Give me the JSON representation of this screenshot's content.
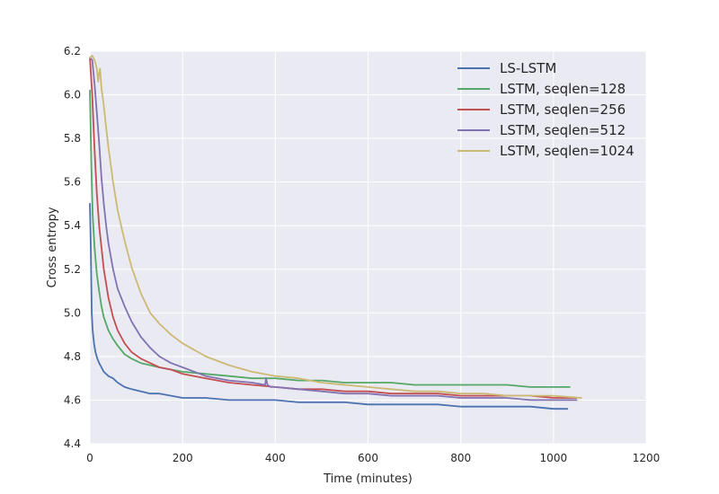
{
  "chart_data": {
    "type": "line",
    "title": "",
    "xlabel": "Time (minutes)",
    "ylabel": "Cross entropy",
    "xlim": [
      0,
      1200
    ],
    "ylim": [
      4.4,
      6.2
    ],
    "xticks": [
      0,
      200,
      400,
      600,
      800,
      1000,
      1200
    ],
    "yticks": [
      4.4,
      4.6,
      4.8,
      5.0,
      5.2,
      5.4,
      5.6,
      5.8,
      6.0,
      6.2
    ],
    "xtick_labels": [
      "0",
      "200",
      "400",
      "600",
      "800",
      "1000",
      "1200"
    ],
    "ytick_labels": [
      "4.4",
      "4.6",
      "4.8",
      "5.0",
      "5.2",
      "5.4",
      "5.6",
      "5.8",
      "6.0",
      "6.2"
    ],
    "grid": true,
    "legend_position": "top-right",
    "series": [
      {
        "name": "LS-LSTM",
        "color": "#4C72B0",
        "x": [
          0,
          2,
          4,
          6,
          9,
          12,
          16,
          20,
          25,
          30,
          40,
          50,
          60,
          75,
          90,
          110,
          130,
          150,
          175,
          200,
          250,
          300,
          350,
          400,
          450,
          500,
          550,
          600,
          650,
          700,
          750,
          800,
          850,
          900,
          950,
          1000,
          1030
        ],
        "y": [
          5.5,
          5.3,
          5.0,
          4.92,
          4.86,
          4.82,
          4.79,
          4.77,
          4.75,
          4.73,
          4.71,
          4.7,
          4.68,
          4.66,
          4.65,
          4.64,
          4.63,
          4.63,
          4.62,
          4.61,
          4.61,
          4.6,
          4.6,
          4.6,
          4.59,
          4.59,
          4.59,
          4.58,
          4.58,
          4.58,
          4.58,
          4.57,
          4.57,
          4.57,
          4.57,
          4.56,
          4.56
        ]
      },
      {
        "name": "LSTM, seqlen=128",
        "color": "#55A868",
        "x": [
          0,
          3,
          6,
          10,
          15,
          20,
          25,
          30,
          40,
          50,
          60,
          75,
          90,
          110,
          130,
          150,
          175,
          200,
          250,
          300,
          350,
          400,
          450,
          500,
          550,
          600,
          650,
          700,
          750,
          800,
          850,
          900,
          950,
          1000,
          1035
        ],
        "y": [
          6.02,
          5.7,
          5.45,
          5.3,
          5.18,
          5.1,
          5.03,
          4.98,
          4.92,
          4.88,
          4.85,
          4.81,
          4.79,
          4.77,
          4.76,
          4.75,
          4.74,
          4.73,
          4.72,
          4.71,
          4.7,
          4.7,
          4.69,
          4.69,
          4.68,
          4.68,
          4.68,
          4.67,
          4.67,
          4.67,
          4.67,
          4.67,
          4.66,
          4.66,
          4.66
        ]
      },
      {
        "name": "LSTM, seqlen=256",
        "color": "#C44E52",
        "x": [
          0,
          5,
          10,
          15,
          20,
          25,
          30,
          40,
          50,
          60,
          75,
          90,
          110,
          130,
          150,
          175,
          200,
          250,
          300,
          350,
          400,
          450,
          500,
          550,
          600,
          650,
          700,
          750,
          800,
          850,
          900,
          950,
          1000,
          1050
        ],
        "y": [
          6.17,
          6.0,
          5.75,
          5.55,
          5.4,
          5.3,
          5.2,
          5.07,
          4.98,
          4.92,
          4.86,
          4.82,
          4.79,
          4.77,
          4.75,
          4.74,
          4.72,
          4.7,
          4.68,
          4.67,
          4.66,
          4.65,
          4.65,
          4.64,
          4.64,
          4.63,
          4.63,
          4.63,
          4.62,
          4.62,
          4.62,
          4.62,
          4.61,
          4.61
        ]
      },
      {
        "name": "LSTM, seqlen=512",
        "color": "#8172B2",
        "x": [
          0,
          5,
          10,
          15,
          20,
          25,
          30,
          35,
          40,
          50,
          60,
          75,
          90,
          110,
          130,
          150,
          175,
          200,
          250,
          300,
          350,
          378,
          380,
          383,
          390,
          400,
          450,
          500,
          550,
          600,
          650,
          700,
          750,
          800,
          850,
          900,
          950,
          1000,
          1050
        ],
        "y": [
          6.17,
          6.16,
          6.05,
          5.92,
          5.78,
          5.62,
          5.5,
          5.4,
          5.32,
          5.2,
          5.11,
          5.03,
          4.96,
          4.89,
          4.84,
          4.8,
          4.77,
          4.75,
          4.71,
          4.69,
          4.68,
          4.67,
          4.7,
          4.67,
          4.66,
          4.66,
          4.65,
          4.64,
          4.63,
          4.63,
          4.62,
          4.62,
          4.62,
          4.61,
          4.61,
          4.61,
          4.6,
          4.6,
          4.6
        ]
      },
      {
        "name": "LSTM, seqlen=1024",
        "color": "#CCB974",
        "x": [
          0,
          5,
          10,
          15,
          18,
          20,
          22,
          25,
          30,
          35,
          40,
          50,
          60,
          75,
          90,
          110,
          130,
          150,
          175,
          200,
          250,
          300,
          350,
          400,
          450,
          500,
          550,
          600,
          650,
          700,
          750,
          800,
          850,
          900,
          950,
          1000,
          1060
        ],
        "y": [
          6.17,
          6.18,
          6.16,
          6.12,
          6.06,
          6.1,
          6.12,
          6.03,
          5.95,
          5.85,
          5.76,
          5.6,
          5.47,
          5.33,
          5.21,
          5.09,
          5.0,
          4.95,
          4.9,
          4.86,
          4.8,
          4.76,
          4.73,
          4.71,
          4.7,
          4.68,
          4.67,
          4.66,
          4.65,
          4.64,
          4.64,
          4.63,
          4.63,
          4.62,
          4.62,
          4.62,
          4.61
        ]
      }
    ]
  }
}
